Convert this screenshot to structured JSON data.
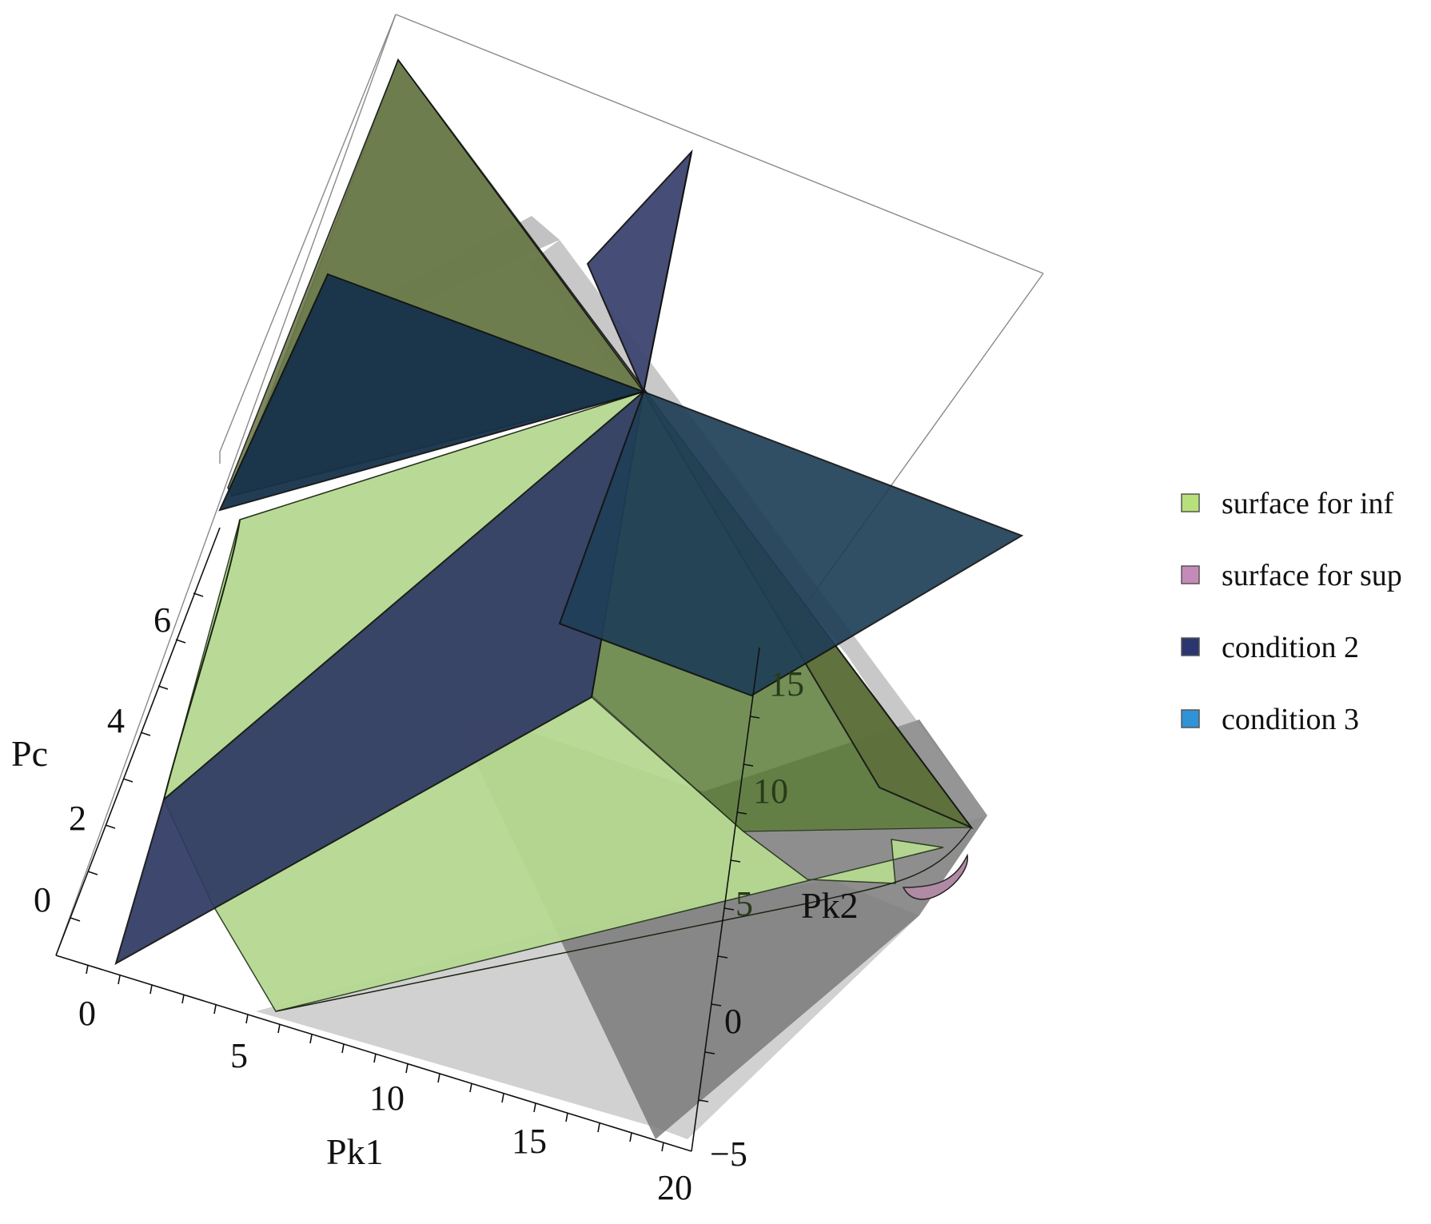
{
  "chart_data": {
    "type": "surface3d",
    "title": "",
    "axes": {
      "x": {
        "label": "Pk1",
        "ticks": [
          "0",
          "5",
          "10",
          "15",
          "20"
        ]
      },
      "y": {
        "label": "Pk2",
        "ticks": [
          "−5",
          "0",
          "5",
          "10",
          "15"
        ]
      },
      "z": {
        "label": "Pc",
        "ticks": [
          "0",
          "2",
          "4",
          "6"
        ]
      }
    },
    "box": "on",
    "grid": "off",
    "legend_position": "right",
    "series": [
      {
        "name": "surface for inf",
        "color": "#b7e07a"
      },
      {
        "name": "surface for sup",
        "color": "#c58bb8"
      },
      {
        "name": "condition 2",
        "color": "#2b3670"
      },
      {
        "name": "condition 3",
        "color": "#2f93d8"
      }
    ]
  }
}
